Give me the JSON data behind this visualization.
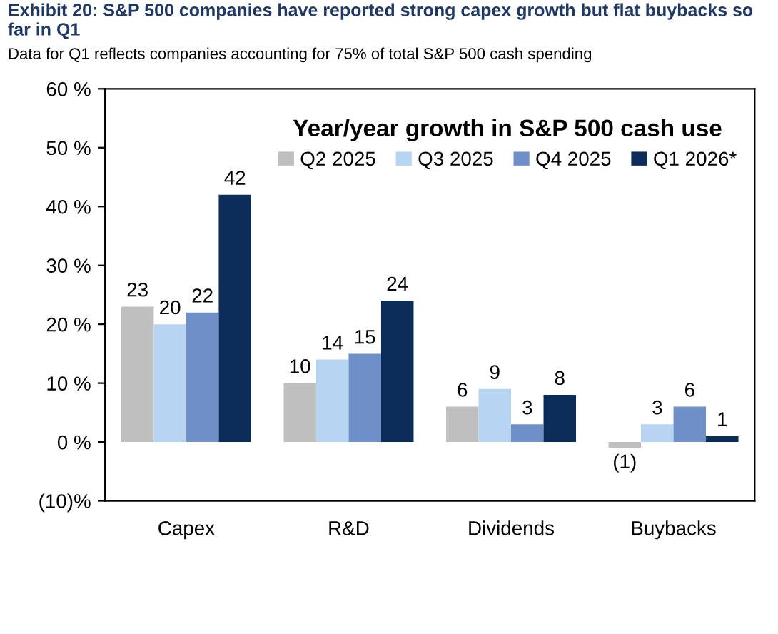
{
  "chart_data": {
    "type": "bar",
    "title": "Exhibit 20: S&P 500 companies have reported strong capex growth but flat buybacks so far in Q1",
    "subtitle": "Data for Q1 reflects companies accounting for 75% of total S&P 500 cash spending",
    "legend_title": "Year/year growth in S&P 500 cash use",
    "categories": [
      "Capex",
      "R&D",
      "Dividends",
      "Buybacks"
    ],
    "series": [
      {
        "name": "Q2 2025",
        "color": "#bfbfbf",
        "values": [
          23,
          10,
          6,
          -1
        ],
        "value_labels": [
          "23",
          "10",
          "6",
          "(1)"
        ]
      },
      {
        "name": "Q3 2025",
        "color": "#b7d4f2",
        "values": [
          20,
          14,
          9,
          3
        ],
        "value_labels": [
          "20",
          "14",
          "9",
          "3"
        ]
      },
      {
        "name": "Q4 2025",
        "color": "#6f8fc9",
        "values": [
          22,
          15,
          3,
          6
        ],
        "value_labels": [
          "22",
          "15",
          "3",
          "6"
        ]
      },
      {
        "name": "Q1 2026*",
        "color": "#0c2c5a",
        "values": [
          42,
          24,
          8,
          1
        ],
        "value_labels": [
          "42",
          "24",
          "8",
          "1"
        ]
      }
    ],
    "ylim": [
      -10,
      60
    ],
    "yticks": [
      {
        "value": -10,
        "label": "(10)%"
      },
      {
        "value": 0,
        "label": "0 %"
      },
      {
        "value": 10,
        "label": "10 %"
      },
      {
        "value": 20,
        "label": "20 %"
      },
      {
        "value": 30,
        "label": "30 %"
      },
      {
        "value": 40,
        "label": "40 %"
      },
      {
        "value": 50,
        "label": "50 %"
      },
      {
        "value": 60,
        "label": "60 %"
      }
    ],
    "legend": "top right"
  }
}
